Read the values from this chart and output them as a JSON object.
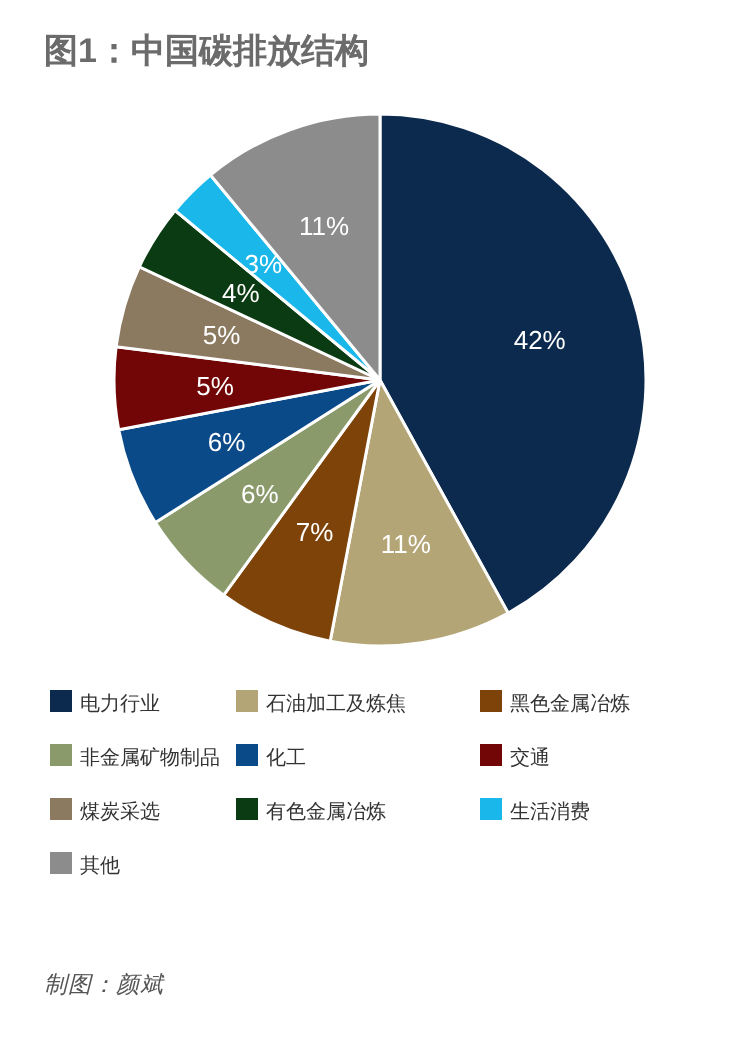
{
  "chart_data": {
    "type": "pie",
    "title": "图1：中国碳排放结构",
    "categories": [
      "电力行业",
      "石油加工及炼焦",
      "黑色金属冶炼",
      "非金属矿物制品",
      "化工",
      "交通",
      "煤炭采选",
      "有色金属冶炼",
      "生活消费",
      "其他"
    ],
    "values": [
      42,
      11,
      7,
      6,
      6,
      5,
      5,
      4,
      3,
      11
    ],
    "colors": [
      "#0c2a4d",
      "#b4a577",
      "#7e4309",
      "#8a9a6b",
      "#0b4a88",
      "#720506",
      "#8b7960",
      "#0b3b12",
      "#1ab7ea",
      "#8c8c8c"
    ],
    "value_labels": [
      "42%",
      "11%",
      "7%",
      "6%",
      "6%",
      "5%",
      "5%",
      "4%",
      "3%",
      "11%"
    ],
    "legend": "bottom",
    "annotations": [
      "制图：颜斌"
    ]
  }
}
